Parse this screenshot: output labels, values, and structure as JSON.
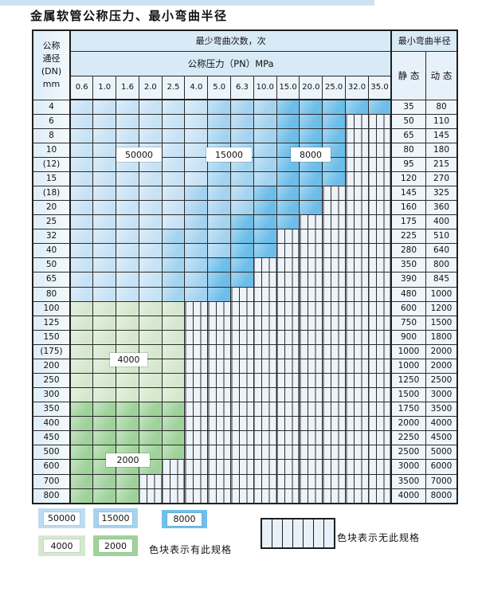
{
  "title": "金属软管公称压力、最小弯曲半径",
  "table": {
    "dn_header_lines": [
      "公称",
      "通径",
      "(DN)",
      "mm"
    ],
    "bend_cycles_header": "最少弯曲次数，次",
    "pressure_header": "公称压力（PN）MPa",
    "radius_header": "最小弯曲半径",
    "static_label": "静 态",
    "dynamic_label": "动 态",
    "pressure_columns": [
      "0.6",
      "1.0",
      "1.6",
      "2.0",
      "2.5",
      "4.0",
      "5.0",
      "6.3",
      "10.0",
      "15.0",
      "20.0",
      "25.0",
      "32.0",
      "35.0"
    ],
    "cell_code_meaning": {
      "L": "50000次",
      "M": "15000次",
      "D": "8000次",
      "g": "4000次",
      "G": "2000次",
      "X": "无此规格"
    },
    "rows": [
      {
        "dn": "4",
        "cells": "LLLLLLMMMDDDDD",
        "static": "35",
        "dynamic": "80"
      },
      {
        "dn": "6",
        "cells": "LLLLLLMMMDDDXX",
        "static": "50",
        "dynamic": "110"
      },
      {
        "dn": "8",
        "cells": "LLLLLLMMMDDDXX",
        "static": "65",
        "dynamic": "145"
      },
      {
        "dn": "10",
        "cells": "LLLLLLMMMDDDXX",
        "static": "80",
        "dynamic": "180"
      },
      {
        "dn": "(12)",
        "cells": "LLLLLLMMMDDDXX",
        "static": "95",
        "dynamic": "215"
      },
      {
        "dn": "15",
        "cells": "LLLLLLMMMDDDXX",
        "static": "120",
        "dynamic": "270"
      },
      {
        "dn": "(18)",
        "cells": "LLLLLMMMDDDXXX",
        "static": "145",
        "dynamic": "325"
      },
      {
        "dn": "20",
        "cells": "LLLLLMMMDDDXXX",
        "static": "160",
        "dynamic": "360"
      },
      {
        "dn": "25",
        "cells": "LLLLLMMDDDXXXX",
        "static": "175",
        "dynamic": "400"
      },
      {
        "dn": "32",
        "cells": "LLLLMMMDDXXXXX",
        "static": "225",
        "dynamic": "510"
      },
      {
        "dn": "40",
        "cells": "LLLLMMMDDXXXXX",
        "static": "280",
        "dynamic": "640"
      },
      {
        "dn": "50",
        "cells": "LLLLMMDDXXXXXX",
        "static": "350",
        "dynamic": "800"
      },
      {
        "dn": "65",
        "cells": "LLLLMMDDXXXXXX",
        "static": "390",
        "dynamic": "845"
      },
      {
        "dn": "80",
        "cells": "LLLLMMDXXXXXXX",
        "static": "480",
        "dynamic": "1000"
      },
      {
        "dn": "100",
        "cells": "gggggXXXXXXXXX",
        "static": "600",
        "dynamic": "1200"
      },
      {
        "dn": "125",
        "cells": "gggggXXXXXXXXX",
        "static": "750",
        "dynamic": "1500"
      },
      {
        "dn": "150",
        "cells": "gggggXXXXXXXXX",
        "static": "900",
        "dynamic": "1800"
      },
      {
        "dn": "(175)",
        "cells": "gggggXXXXXXXXX",
        "static": "1000",
        "dynamic": "2000"
      },
      {
        "dn": "200",
        "cells": "gggggXXXXXXXXX",
        "static": "1000",
        "dynamic": "2000"
      },
      {
        "dn": "250",
        "cells": "gggggXXXXXXXXX",
        "static": "1250",
        "dynamic": "2500"
      },
      {
        "dn": "300",
        "cells": "gggggXXXXXXXXX",
        "static": "1500",
        "dynamic": "3000"
      },
      {
        "dn": "350",
        "cells": "GGGGGXXXXXXXXX",
        "static": "1750",
        "dynamic": "3500"
      },
      {
        "dn": "400",
        "cells": "GGGGGXXXXXXXXX",
        "static": "2000",
        "dynamic": "4000"
      },
      {
        "dn": "450",
        "cells": "GGGGGXXXXXXXXX",
        "static": "2250",
        "dynamic": "4500"
      },
      {
        "dn": "500",
        "cells": "GGGGGXXXXXXXXX",
        "static": "2500",
        "dynamic": "5000"
      },
      {
        "dn": "600",
        "cells": "GGGGXXXXXXXXXX",
        "static": "3000",
        "dynamic": "6000"
      },
      {
        "dn": "700",
        "cells": "GGGXXXXXXXXXXX",
        "static": "3500",
        "dynamic": "7000"
      },
      {
        "dn": "800",
        "cells": "GGGXXXXXXXXXXX",
        "static": "4000",
        "dynamic": "8000"
      }
    ]
  },
  "overlay_labels": {
    "b50000": "50000",
    "b15000": "15000",
    "b8000": "8000",
    "b4000": "4000",
    "b2000": "2000"
  },
  "legend": {
    "has_spec": [
      {
        "label": "50000",
        "code": "L"
      },
      {
        "label": "15000",
        "code": "M"
      },
      {
        "label": "8000",
        "code": "D"
      },
      {
        "label": "4000",
        "code": "g"
      },
      {
        "label": "2000",
        "code": "G"
      }
    ],
    "has_spec_note": "色块表示有此规格",
    "no_spec_note": "色块表示无此规格"
  },
  "colors": {
    "cycles_50000": "#c8e2f5",
    "cycles_15000": "#a4d3f0",
    "cycles_8000": "#6cbde9",
    "cycles_4000": "#d5e8ce",
    "cycles_2000": "#9fd29b",
    "no_spec_bg": "#edf3fa",
    "header_bg": "#d9eaf7",
    "top_strip": "#cfe2f1",
    "grid_line": "#2b2b2b"
  }
}
